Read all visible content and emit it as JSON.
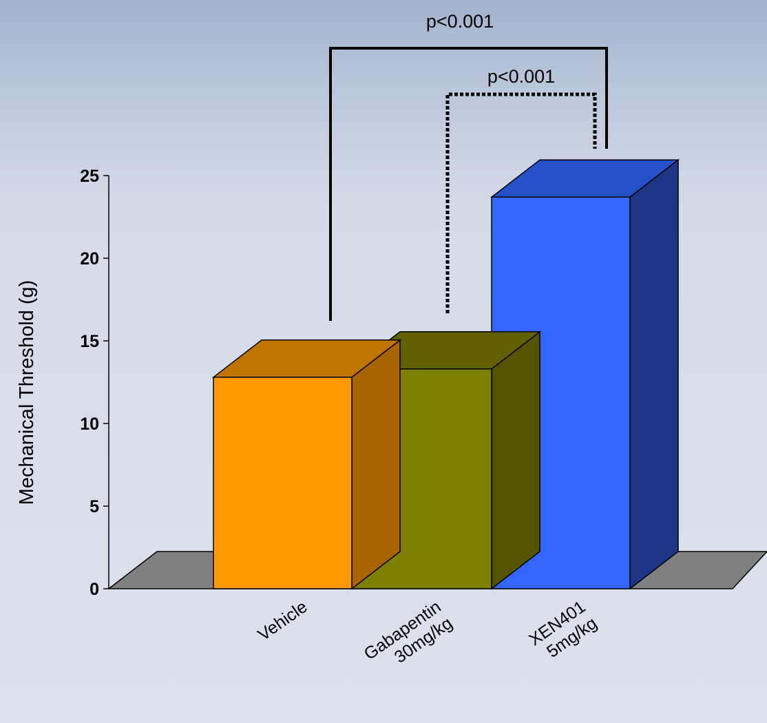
{
  "chart_data": {
    "type": "bar",
    "style": "3d",
    "categories": [
      [
        "Vehicle"
      ],
      [
        "Gabapentin",
        "30mg/kg"
      ],
      [
        "XEN401",
        "5mg/kg"
      ]
    ],
    "values": [
      12.8,
      13.3,
      23.7
    ],
    "ylabel": "Mechanical Threshold (g)",
    "ylim": [
      0,
      25
    ],
    "yticks": [
      0,
      5,
      10,
      15,
      20,
      25
    ],
    "colors": {
      "front": [
        "#ff9900",
        "#808000",
        "#3366ff"
      ],
      "top": [
        "#c07400",
        "#606000",
        "#2650c8"
      ],
      "side": [
        "#a86400",
        "#545400",
        "#1f3586"
      ],
      "floor": "#808080"
    },
    "grid": false,
    "legend": "none",
    "annotations": [
      {
        "label": "p<0.001",
        "from": 0,
        "to": 2,
        "style": "solid"
      },
      {
        "label": "p<0.001",
        "from": 1,
        "to": 2,
        "style": "dotted"
      }
    ]
  }
}
